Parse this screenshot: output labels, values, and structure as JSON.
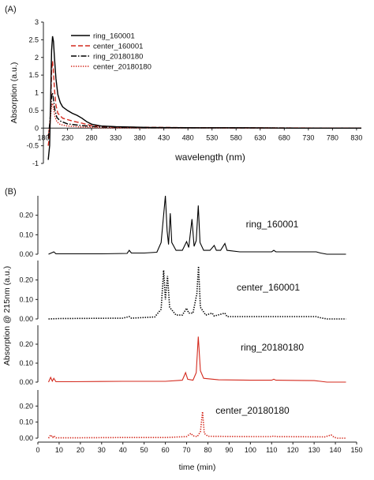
{
  "chart_data": [
    {
      "type": "line",
      "panel_label": "(A)",
      "xlabel": "wavelength  (nm)",
      "ylabel": "Absorption (a.u.)",
      "xlim": [
        180,
        840
      ],
      "ylim": [
        -1,
        3
      ],
      "x_ticks": [
        180,
        230,
        280,
        330,
        380,
        430,
        480,
        530,
        580,
        630,
        680,
        730,
        780,
        830
      ],
      "y_ticks": [
        -1,
        -0.5,
        0,
        0.5,
        1,
        1.5,
        2,
        2.5,
        3
      ],
      "legend_position": "top-center",
      "grid": false,
      "series": [
        {
          "name": "ring_160001",
          "color": "#000000",
          "style": "solid",
          "points": [
            [
              190,
              -0.9
            ],
            [
              193,
              -0.5
            ],
            [
              195,
              0.8
            ],
            [
              197,
              2.2
            ],
            [
              199,
              2.6
            ],
            [
              201,
              2.45
            ],
            [
              203,
              2.0
            ],
            [
              206,
              1.4
            ],
            [
              210,
              0.95
            ],
            [
              215,
              0.72
            ],
            [
              220,
              0.6
            ],
            [
              230,
              0.5
            ],
            [
              240,
              0.42
            ],
            [
              250,
              0.36
            ],
            [
              260,
              0.28
            ],
            [
              270,
              0.18
            ],
            [
              280,
              0.11
            ],
            [
              300,
              0.06
            ],
            [
              330,
              0.04
            ],
            [
              400,
              0.02
            ],
            [
              500,
              0.01
            ],
            [
              600,
              0.01
            ],
            [
              700,
              0.0
            ],
            [
              840,
              0.0
            ]
          ]
        },
        {
          "name": "center_160001",
          "color": "#d42a1e",
          "style": "dashed",
          "points": [
            [
              190,
              -0.5
            ],
            [
              193,
              -0.2
            ],
            [
              195,
              0.6
            ],
            [
              197,
              1.6
            ],
            [
              199,
              1.9
            ],
            [
              201,
              1.6
            ],
            [
              203,
              1.1
            ],
            [
              206,
              0.65
            ],
            [
              210,
              0.42
            ],
            [
              220,
              0.28
            ],
            [
              240,
              0.2
            ],
            [
              260,
              0.14
            ],
            [
              280,
              0.07
            ],
            [
              330,
              0.03
            ],
            [
              500,
              0.01
            ],
            [
              840,
              0.0
            ]
          ]
        },
        {
          "name": "ring_20180180",
          "color": "#000000",
          "style": "dashdot",
          "points": [
            [
              190,
              -0.3
            ],
            [
              193,
              0.1
            ],
            [
              195,
              0.5
            ],
            [
              197,
              0.9
            ],
            [
              199,
              1.0
            ],
            [
              201,
              0.8
            ],
            [
              204,
              0.5
            ],
            [
              208,
              0.3
            ],
            [
              215,
              0.2
            ],
            [
              230,
              0.12
            ],
            [
              260,
              0.07
            ],
            [
              300,
              0.03
            ],
            [
              400,
              0.01
            ],
            [
              840,
              0.0
            ]
          ]
        },
        {
          "name": "center_20180180",
          "color": "#d42a1e",
          "style": "dotted",
          "points": [
            [
              190,
              -0.2
            ],
            [
              193,
              0.05
            ],
            [
              195,
              0.35
            ],
            [
              197,
              0.65
            ],
            [
              199,
              0.7
            ],
            [
              201,
              0.55
            ],
            [
              204,
              0.32
            ],
            [
              208,
              0.18
            ],
            [
              215,
              0.1
            ],
            [
              230,
              0.06
            ],
            [
              260,
              0.03
            ],
            [
              300,
              0.01
            ],
            [
              840,
              0.0
            ]
          ]
        }
      ]
    },
    {
      "type": "line",
      "panel_label": "(B)",
      "xlabel": "time (min)",
      "ylabel": "Absorption @ 215nm (a.u.)",
      "xlim": [
        0,
        150
      ],
      "x_ticks": [
        0,
        10,
        20,
        30,
        40,
        50,
        60,
        70,
        80,
        90,
        100,
        110,
        120,
        130,
        140,
        150
      ],
      "subplots": [
        {
          "name": "ring_160001",
          "color": "#000000",
          "style": "solid",
          "ylim": [
            0,
            0.3
          ],
          "y_ticks": [
            0.0,
            0.1,
            0.2
          ],
          "points": [
            [
              5,
              0.0
            ],
            [
              7.5,
              0.012
            ],
            [
              8.5,
              0.002
            ],
            [
              10,
              0.002
            ],
            [
              30,
              0.002
            ],
            [
              42,
              0.004
            ],
            [
              43,
              0.02
            ],
            [
              44,
              0.006
            ],
            [
              50,
              0.006
            ],
            [
              56,
              0.01
            ],
            [
              58,
              0.06
            ],
            [
              59,
              0.18
            ],
            [
              60,
              0.3
            ],
            [
              60.8,
              0.12
            ],
            [
              61.5,
              0.05
            ],
            [
              62.3,
              0.21
            ],
            [
              63,
              0.06
            ],
            [
              65,
              0.02
            ],
            [
              68,
              0.02
            ],
            [
              70,
              0.065
            ],
            [
              71,
              0.035
            ],
            [
              72.5,
              0.18
            ],
            [
              73.5,
              0.04
            ],
            [
              74.5,
              0.07
            ],
            [
              75.5,
              0.25
            ],
            [
              76.3,
              0.06
            ],
            [
              78,
              0.02
            ],
            [
              81,
              0.02
            ],
            [
              83,
              0.045
            ],
            [
              84,
              0.02
            ],
            [
              86,
              0.02
            ],
            [
              88,
              0.055
            ],
            [
              89,
              0.02
            ],
            [
              95,
              0.012
            ],
            [
              110,
              0.012
            ],
            [
              111,
              0.02
            ],
            [
              112,
              0.012
            ],
            [
              128,
              0.012
            ],
            [
              131,
              0.012
            ],
            [
              133,
              0.006
            ],
            [
              136,
              0.0
            ],
            [
              140,
              0.0
            ],
            [
              145,
              0.0
            ]
          ]
        },
        {
          "name": "center_160001",
          "color": "#000000",
          "style": "dotted",
          "ylim": [
            0,
            0.3
          ],
          "y_ticks": [
            0.0,
            0.1,
            0.2
          ],
          "points": [
            [
              5,
              0.0
            ],
            [
              10,
              0.002
            ],
            [
              40,
              0.004
            ],
            [
              43,
              0.012
            ],
            [
              44,
              0.004
            ],
            [
              55,
              0.01
            ],
            [
              58,
              0.05
            ],
            [
              59.2,
              0.25
            ],
            [
              60,
              0.1
            ],
            [
              61,
              0.22
            ],
            [
              62,
              0.06
            ],
            [
              65,
              0.02
            ],
            [
              68,
              0.02
            ],
            [
              70,
              0.055
            ],
            [
              71,
              0.03
            ],
            [
              73,
              0.03
            ],
            [
              74.8,
              0.13
            ],
            [
              75.6,
              0.27
            ],
            [
              76.5,
              0.06
            ],
            [
              79,
              0.02
            ],
            [
              82,
              0.03
            ],
            [
              83,
              0.015
            ],
            [
              88,
              0.03
            ],
            [
              89,
              0.012
            ],
            [
              100,
              0.012
            ],
            [
              128,
              0.012
            ],
            [
              131,
              0.012
            ],
            [
              133,
              0.006
            ],
            [
              136,
              0.0
            ],
            [
              145,
              0.0
            ]
          ]
        },
        {
          "name": "ring_20180180",
          "color": "#d42a1e",
          "style": "solid",
          "ylim": [
            0,
            0.3
          ],
          "y_ticks": [
            0.0,
            0.1,
            0.2
          ],
          "points": [
            [
              5,
              0.0
            ],
            [
              6,
              0.025
            ],
            [
              6.8,
              0.005
            ],
            [
              7.5,
              0.02
            ],
            [
              8.5,
              0.002
            ],
            [
              15,
              0.002
            ],
            [
              40,
              0.004
            ],
            [
              60,
              0.004
            ],
            [
              68,
              0.01
            ],
            [
              69.5,
              0.05
            ],
            [
              70.5,
              0.015
            ],
            [
              73,
              0.01
            ],
            [
              74.5,
              0.05
            ],
            [
              75.5,
              0.24
            ],
            [
              76.5,
              0.06
            ],
            [
              78,
              0.02
            ],
            [
              85,
              0.012
            ],
            [
              100,
              0.01
            ],
            [
              110,
              0.01
            ],
            [
              111,
              0.015
            ],
            [
              112,
              0.01
            ],
            [
              130,
              0.008
            ],
            [
              133,
              0.004
            ],
            [
              136,
              0.0
            ],
            [
              145,
              0.0
            ]
          ]
        },
        {
          "name": "center_20180180",
          "color": "#d42a1e",
          "style": "dotted",
          "ylim": [
            0,
            0.3
          ],
          "y_ticks": [
            0.0,
            0.1,
            0.2
          ],
          "points": [
            [
              5,
              0.0
            ],
            [
              6,
              0.02
            ],
            [
              7,
              0.005
            ],
            [
              7.5,
              0.015
            ],
            [
              8.5,
              0.002
            ],
            [
              15,
              0.002
            ],
            [
              40,
              0.004
            ],
            [
              60,
              0.004
            ],
            [
              70,
              0.01
            ],
            [
              72,
              0.03
            ],
            [
              73,
              0.015
            ],
            [
              75,
              0.01
            ],
            [
              76.5,
              0.04
            ],
            [
              77.5,
              0.165
            ],
            [
              78.3,
              0.03
            ],
            [
              80,
              0.012
            ],
            [
              100,
              0.01
            ],
            [
              110,
              0.01
            ],
            [
              111,
              0.014
            ],
            [
              112,
              0.01
            ],
            [
              135,
              0.008
            ],
            [
              138,
              0.02
            ],
            [
              139.5,
              0.005
            ],
            [
              141,
              0.0
            ],
            [
              145,
              0.0
            ]
          ]
        }
      ]
    }
  ]
}
